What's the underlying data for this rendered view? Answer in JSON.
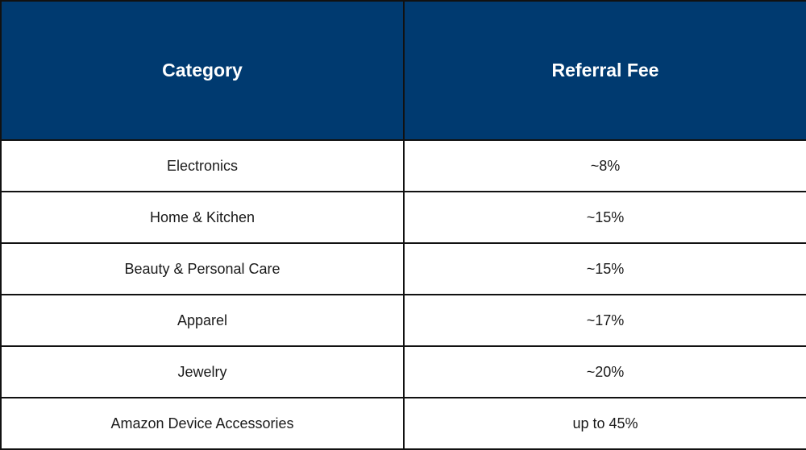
{
  "table": {
    "headers": {
      "category": "Category",
      "fee": "Referral Fee"
    },
    "rows": [
      {
        "category": "Electronics",
        "fee": "~8%"
      },
      {
        "category": "Home & Kitchen",
        "fee": "~15%"
      },
      {
        "category": "Beauty & Personal Care",
        "fee": "~15%"
      },
      {
        "category": "Apparel",
        "fee": "~17%"
      },
      {
        "category": "Jewelry",
        "fee": "~20%"
      },
      {
        "category": "Amazon Device Accessories",
        "fee": "up to 45%"
      }
    ]
  },
  "colors": {
    "header_background": "#003a70",
    "header_text": "#ffffff",
    "body_text": "#1a1a1a",
    "border": "#111111"
  }
}
